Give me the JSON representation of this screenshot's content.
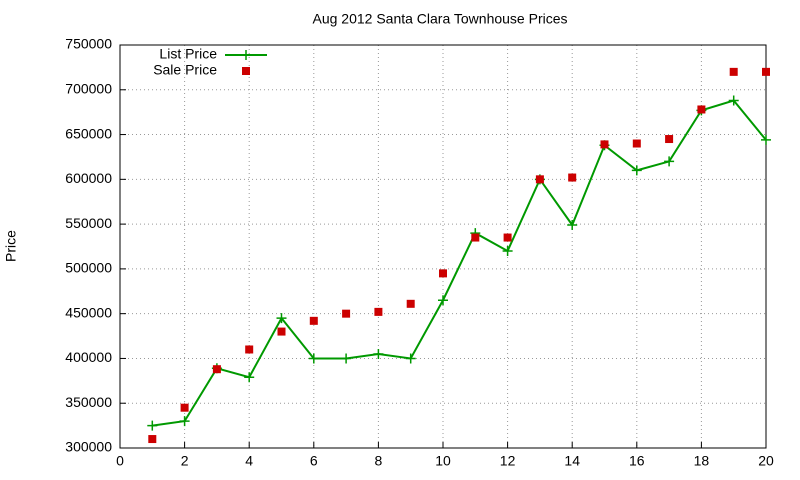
{
  "chart_data": {
    "type": "line",
    "title": "Aug 2012 Santa Clara Townhouse Prices",
    "y_label": "Price",
    "x": [
      1,
      2,
      3,
      4,
      5,
      6,
      7,
      8,
      9,
      10,
      11,
      12,
      13,
      14,
      15,
      16,
      17,
      18,
      19,
      20
    ],
    "series": [
      {
        "name": "List Price",
        "color": "#009900",
        "style": "linespoints",
        "values": [
          325000,
          330000,
          389000,
          379000,
          445000,
          400000,
          400000,
          405000,
          400000,
          465000,
          540000,
          520000,
          600000,
          549000,
          638000,
          610000,
          620000,
          677000,
          688000,
          644000
        ]
      },
      {
        "name": "Sale Price",
        "color": "#cc0000",
        "style": "points",
        "values": [
          310000,
          345000,
          388000,
          410000,
          430000,
          442000,
          450000,
          452000,
          461000,
          495000,
          535000,
          535000,
          600000,
          602000,
          639000,
          640000,
          645000,
          678000,
          720000,
          720000
        ]
      }
    ],
    "xlim": [
      0,
      20
    ],
    "xticks": [
      0,
      2,
      4,
      6,
      8,
      10,
      12,
      14,
      16,
      18,
      20
    ],
    "ylim": [
      300000,
      750000
    ],
    "yticks": [
      300000,
      350000,
      400000,
      450000,
      500000,
      550000,
      600000,
      650000,
      700000,
      750000
    ],
    "grid": true,
    "legend": "top-left"
  }
}
